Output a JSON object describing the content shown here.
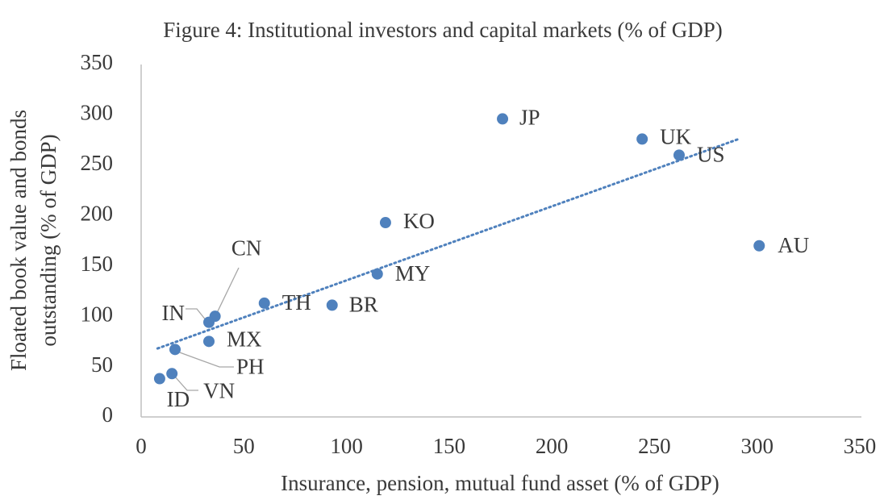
{
  "chart_data": {
    "type": "scatter",
    "title": "Figure 4: Institutional investors and capital markets (% of GDP)",
    "x_label": "Insurance, pension, mutual fund asset (% of GDP)",
    "y_label": [
      "Floated book value and bonds",
      "outstanding (% of GDP)"
    ],
    "color": "#4f81bd",
    "point_labels": [
      "JP",
      "UK",
      "US",
      "AU",
      "KO",
      "MY",
      "BR",
      "TH",
      "CN",
      "IN",
      "MX",
      "PH",
      "VN",
      "ID"
    ],
    "x": [
      176,
      244,
      262,
      301,
      119,
      115,
      93,
      60,
      36,
      33,
      33,
      16.5,
      15,
      9
    ],
    "values": [
      296,
      276,
      260,
      170,
      193,
      142,
      111,
      113,
      100,
      94,
      75,
      67,
      43,
      38
    ],
    "trendline": {
      "x": [
        8,
        291
      ],
      "values": [
        68,
        276
      ],
      "style": "dotted"
    },
    "xlim": [
      0,
      350
    ],
    "xticks": [
      0,
      50,
      100,
      150,
      200,
      250,
      300,
      350
    ],
    "ylim": [
      0,
      350
    ],
    "yticks": [
      0,
      50,
      100,
      150,
      200,
      250,
      300,
      350
    ],
    "grid": false
  }
}
